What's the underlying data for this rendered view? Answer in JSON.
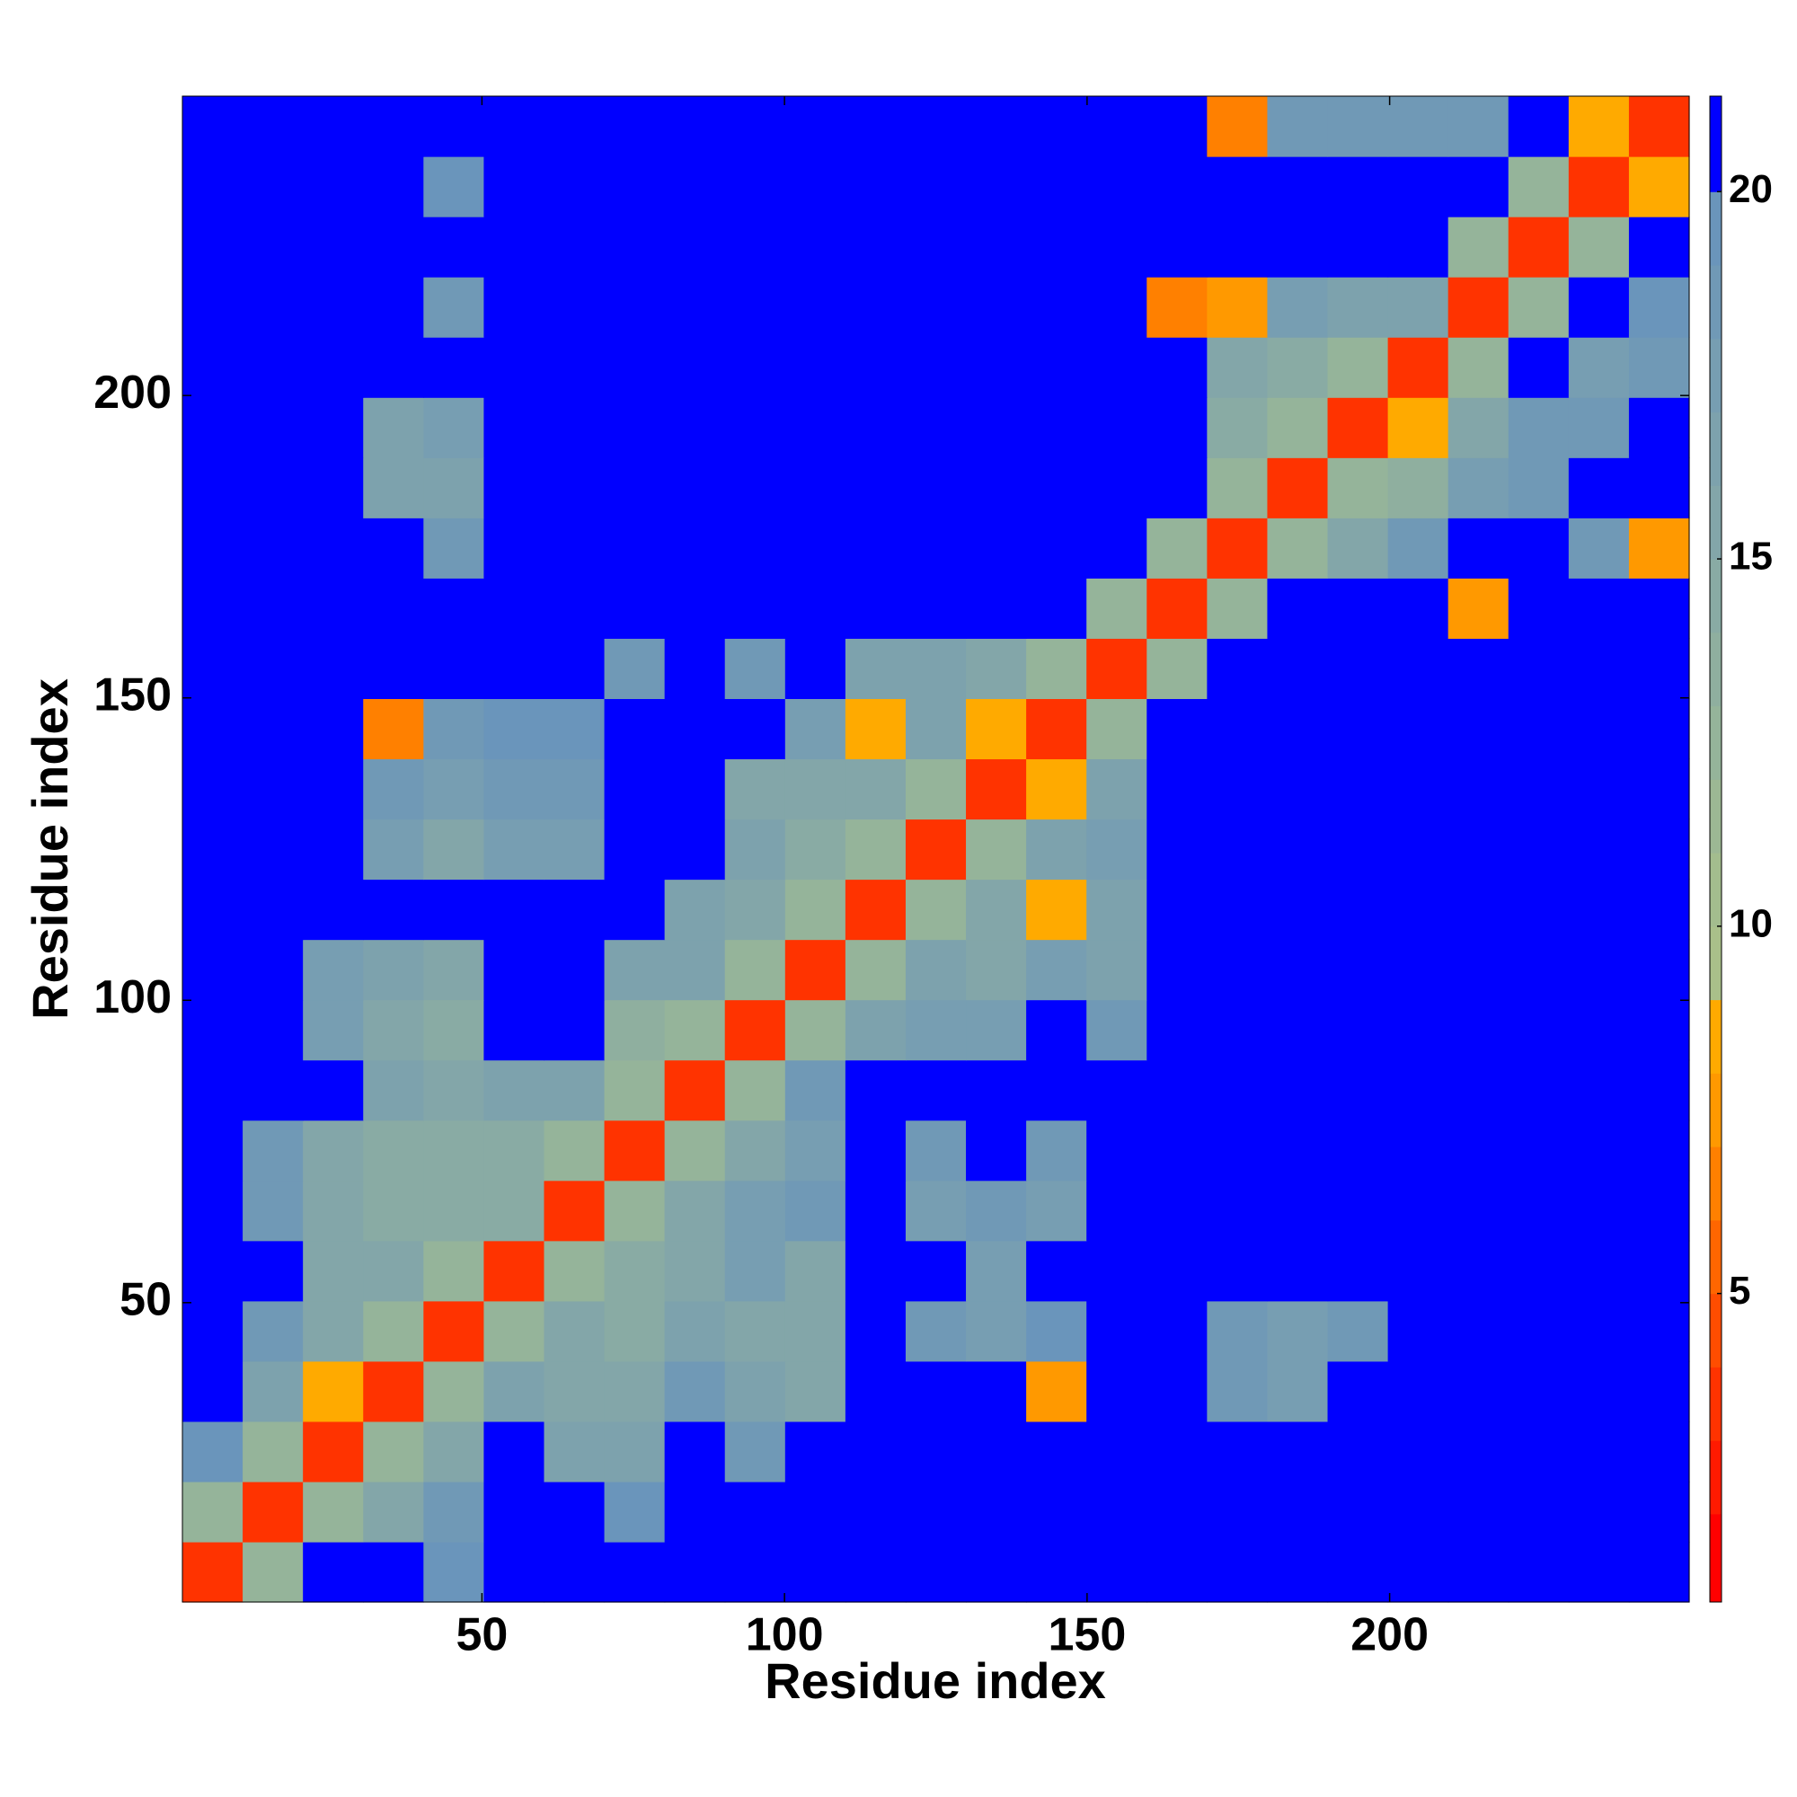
{
  "chart_data": {
    "type": "heatmap",
    "x_label": "Residue index",
    "y_label": "Residue index",
    "xlim": [
      0.5,
      249.5
    ],
    "ylim": [
      0.5,
      249.5
    ],
    "xticks": [
      50,
      100,
      150,
      200
    ],
    "yticks": [
      50,
      100,
      150,
      200
    ],
    "levels": [
      0.8,
      2,
      3,
      4,
      5,
      6,
      7,
      8,
      9,
      10,
      11,
      12,
      13,
      14,
      15,
      16,
      17,
      18,
      19,
      20,
      21.3
    ],
    "colors": [
      "#ff0000",
      "#ff1a00",
      "#ff3300",
      "#ff4d00",
      "#ff6600",
      "#ff8000",
      "#ff9900",
      "#ffaa00",
      "#a9c08a",
      "#a3bd8e",
      "#9cb894",
      "#95b49a",
      "#8faf9f",
      "#89aba4",
      "#83a6a9",
      "#7da2ad",
      "#779eb2",
      "#7099b6",
      "#6a95bb",
      "#0000ff"
    ],
    "colorbar_ticks": [
      5,
      10,
      15,
      20
    ],
    "z": [
      [
        3,
        12,
        21,
        21,
        19,
        21,
        21,
        21,
        21,
        21,
        21,
        21,
        21,
        21,
        21,
        21,
        21,
        21,
        21,
        21,
        21,
        21,
        21,
        21,
        21
      ],
      [
        12,
        3,
        12,
        15,
        18,
        21,
        21,
        19,
        21,
        21,
        21,
        21,
        21,
        21,
        21,
        21,
        21,
        21,
        21,
        21,
        21,
        21,
        21,
        21,
        21
      ],
      [
        19,
        12,
        3,
        12,
        15,
        21,
        16,
        16,
        21,
        18,
        21,
        21,
        21,
        21,
        21,
        21,
        21,
        21,
        21,
        21,
        21,
        21,
        21,
        21,
        21
      ],
      [
        21,
        16,
        8,
        3,
        12,
        16,
        15,
        15,
        18,
        16,
        15,
        21,
        21,
        21,
        7,
        21,
        21,
        18,
        17,
        21,
        21,
        21,
        21,
        21,
        21
      ],
      [
        21,
        18,
        15,
        12,
        3,
        12,
        15,
        14,
        16,
        15,
        15,
        21,
        18,
        17,
        19,
        21,
        21,
        18,
        17,
        18,
        21,
        21,
        21,
        21,
        21
      ],
      [
        21,
        21,
        15,
        15,
        12,
        3,
        12,
        14,
        15,
        17,
        15,
        21,
        21,
        17,
        21,
        21,
        21,
        21,
        21,
        21,
        21,
        21,
        21,
        21,
        21
      ],
      [
        21,
        18,
        15,
        14,
        14,
        14,
        3,
        12,
        15,
        17,
        18,
        21,
        17,
        18,
        17,
        21,
        21,
        21,
        21,
        21,
        21,
        21,
        21,
        21,
        21
      ],
      [
        21,
        18,
        15,
        14,
        14,
        14,
        12,
        3,
        12,
        15,
        17,
        21,
        18,
        21,
        18,
        21,
        21,
        21,
        21,
        21,
        21,
        21,
        21,
        21,
        21
      ],
      [
        21,
        21,
        21,
        16,
        15,
        16,
        16,
        12,
        3,
        12,
        18,
        21,
        21,
        21,
        21,
        21,
        21,
        21,
        21,
        21,
        21,
        21,
        21,
        21,
        21
      ],
      [
        21,
        21,
        17,
        15,
        14,
        21,
        21,
        13,
        12,
        3,
        12,
        16,
        17,
        17,
        21,
        18,
        21,
        21,
        21,
        21,
        21,
        21,
        21,
        21,
        21
      ],
      [
        21,
        21,
        17,
        16,
        15,
        21,
        21,
        16,
        16,
        12,
        3,
        12,
        16,
        15,
        17,
        16,
        21,
        21,
        21,
        21,
        21,
        21,
        21,
        21,
        21
      ],
      [
        21,
        21,
        21,
        21,
        21,
        21,
        21,
        21,
        16,
        15,
        12,
        3,
        12,
        15,
        8,
        16,
        21,
        21,
        21,
        21,
        21,
        21,
        21,
        21,
        21
      ],
      [
        21,
        21,
        21,
        17,
        15,
        17,
        17,
        21,
        21,
        16,
        14,
        12,
        3,
        12,
        16,
        17,
        21,
        21,
        21,
        21,
        21,
        21,
        21,
        21,
        21
      ],
      [
        21,
        21,
        21,
        18,
        17,
        18,
        18,
        21,
        21,
        15,
        15,
        15,
        12,
        3,
        8,
        16,
        21,
        21,
        21,
        21,
        21,
        21,
        21,
        21,
        21
      ],
      [
        21,
        21,
        21,
        6,
        18,
        19,
        19,
        21,
        21,
        21,
        17,
        8,
        16,
        8,
        3,
        12,
        21,
        21,
        21,
        21,
        21,
        21,
        21,
        21,
        21
      ],
      [
        21,
        21,
        21,
        21,
        21,
        21,
        21,
        18,
        21,
        18,
        21,
        16,
        16,
        15,
        12,
        3,
        12,
        21,
        21,
        21,
        21,
        21,
        21,
        21,
        21
      ],
      [
        21,
        21,
        21,
        21,
        21,
        21,
        21,
        21,
        21,
        21,
        21,
        21,
        21,
        21,
        21,
        12,
        3,
        12,
        21,
        21,
        21,
        7,
        21,
        21,
        21
      ],
      [
        21,
        21,
        21,
        21,
        18,
        21,
        21,
        21,
        21,
        21,
        21,
        21,
        21,
        21,
        21,
        21,
        12,
        3,
        12,
        15,
        18,
        21,
        21,
        18,
        7
      ],
      [
        21,
        21,
        21,
        16,
        16,
        21,
        21,
        21,
        21,
        21,
        21,
        21,
        21,
        21,
        21,
        21,
        21,
        12,
        3,
        12,
        13,
        17,
        18,
        21,
        21
      ],
      [
        21,
        21,
        21,
        16,
        17,
        21,
        21,
        21,
        21,
        21,
        21,
        21,
        21,
        21,
        21,
        21,
        21,
        14,
        12,
        3,
        8,
        15,
        18,
        18,
        21
      ],
      [
        21,
        21,
        21,
        21,
        21,
        21,
        21,
        21,
        21,
        21,
        21,
        21,
        21,
        21,
        21,
        21,
        21,
        15,
        14,
        12,
        3,
        12,
        21,
        17,
        18
      ],
      [
        21,
        21,
        21,
        21,
        18,
        21,
        21,
        21,
        21,
        21,
        21,
        21,
        21,
        21,
        21,
        21,
        6,
        7,
        17,
        16,
        16,
        3,
        12,
        21,
        19
      ],
      [
        21,
        21,
        21,
        21,
        21,
        21,
        21,
        21,
        21,
        21,
        21,
        21,
        21,
        21,
        21,
        21,
        21,
        21,
        21,
        21,
        21,
        12,
        3,
        12,
        21
      ],
      [
        21,
        21,
        21,
        21,
        19,
        21,
        21,
        21,
        21,
        21,
        21,
        21,
        21,
        21,
        21,
        21,
        21,
        21,
        21,
        21,
        21,
        21,
        12,
        3,
        8
      ],
      [
        21,
        21,
        21,
        21,
        21,
        21,
        21,
        21,
        21,
        21,
        21,
        21,
        21,
        21,
        21,
        21,
        21,
        6,
        18,
        18,
        18,
        18,
        21,
        8,
        3
      ]
    ]
  }
}
